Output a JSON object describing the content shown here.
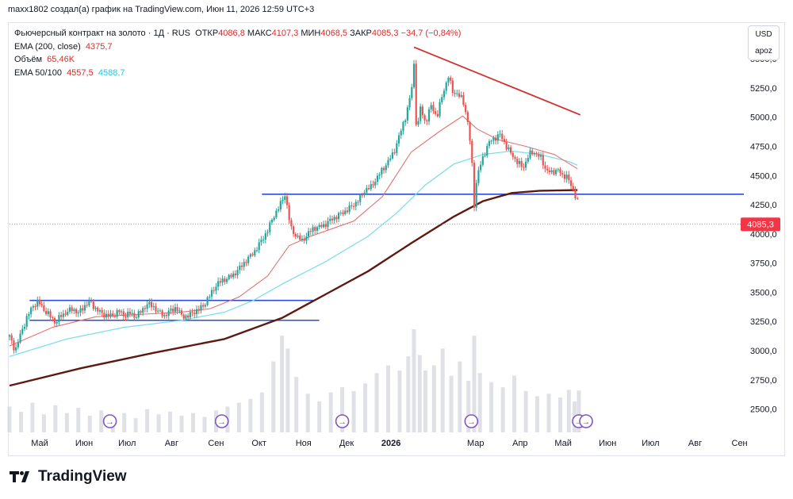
{
  "credit": "maxx1802 создал(а) график на TradingView.com, Июн 11, 2026 12:59 UTC+3",
  "legend": {
    "symbol": "Фьючерсный контракт на золото · 1Д · RUS",
    "open_label": "ОТКР",
    "open": "4086,8",
    "high_label": "МАКС",
    "high": "4107,3",
    "low_label": "МИН",
    "low": "4068,5",
    "close_label": "ЗАКР",
    "close": "4085,3",
    "change": "−34,7 (−0,84%)",
    "ema200_label": "EMA (200, close)",
    "ema200_value": "4375,7",
    "volume_label": "Объём",
    "volume_value": "65,46K",
    "ema50_100_label": "EMA 50/100",
    "ema50_value": "4557,5",
    "ema100_value": "4588,7"
  },
  "currency_button": "USD",
  "scale_button": "apoz",
  "brand": "TradingView",
  "colors": {
    "up": "#26a69a",
    "down": "#ef5350",
    "ema50": "#e57373",
    "ema100": "#80deea",
    "ema200": "#5d1a12",
    "hline": "#2e4bd8",
    "trendline": "#d32f2f",
    "price_label": "#f23645"
  },
  "chart_data": {
    "type": "candlestick",
    "title": "Фьючерсный контракт на золото",
    "timeframe": "1Д",
    "ylim": [
      2300,
      5800
    ],
    "y_ticks": [
      2500,
      2750,
      3000,
      3250,
      3500,
      3750,
      4000,
      4250,
      4500,
      4750,
      5000,
      5250,
      5500
    ],
    "y_tick_labels": [
      "2500,0",
      "2750,0",
      "3000,0",
      "3250,0",
      "3500,0",
      "3750,0",
      "4000,0",
      "4250,0",
      "4500,0",
      "4750,0",
      "5000,0",
      "5250,0",
      "5500,0"
    ],
    "x_tick_labels": [
      "Май",
      "Июн",
      "Июл",
      "Авг",
      "Сен",
      "Окт",
      "Ноя",
      "Дек",
      "2026",
      "Мар",
      "Апр",
      "Май",
      "Июн",
      "Июл",
      "Авг",
      "Сен"
    ],
    "x_ticks_day": [
      21,
      52,
      82,
      113,
      144,
      174,
      205,
      235,
      266,
      325,
      356,
      386,
      417,
      447,
      478,
      509
    ],
    "x_range_days": [
      0,
      512
    ],
    "last_price": 4085.3,
    "last_price_label": "4085,3",
    "price_path": [
      [
        0,
        3120
      ],
      [
        4,
        3000
      ],
      [
        8,
        3150
      ],
      [
        12,
        3280
      ],
      [
        16,
        3380
      ],
      [
        20,
        3420
      ],
      [
        24,
        3350
      ],
      [
        28,
        3300
      ],
      [
        32,
        3240
      ],
      [
        36,
        3300
      ],
      [
        40,
        3330
      ],
      [
        44,
        3360
      ],
      [
        48,
        3320
      ],
      [
        52,
        3380
      ],
      [
        56,
        3420
      ],
      [
        60,
        3360
      ],
      [
        64,
        3320
      ],
      [
        68,
        3300
      ],
      [
        72,
        3300
      ],
      [
        76,
        3340
      ],
      [
        80,
        3300
      ],
      [
        84,
        3320
      ],
      [
        88,
        3290
      ],
      [
        92,
        3340
      ],
      [
        96,
        3400
      ],
      [
        100,
        3380
      ],
      [
        104,
        3330
      ],
      [
        108,
        3300
      ],
      [
        112,
        3340
      ],
      [
        116,
        3370
      ],
      [
        120,
        3300
      ],
      [
        124,
        3290
      ],
      [
        128,
        3330
      ],
      [
        132,
        3350
      ],
      [
        136,
        3400
      ],
      [
        140,
        3480
      ],
      [
        144,
        3560
      ],
      [
        148,
        3600
      ],
      [
        152,
        3620
      ],
      [
        156,
        3650
      ],
      [
        160,
        3700
      ],
      [
        164,
        3760
      ],
      [
        168,
        3810
      ],
      [
        172,
        3870
      ],
      [
        176,
        3950
      ],
      [
        180,
        4030
      ],
      [
        184,
        4150
      ],
      [
        188,
        4230
      ],
      [
        192,
        4340
      ],
      [
        194,
        4200
      ],
      [
        196,
        4050
      ],
      [
        200,
        3980
      ],
      [
        204,
        3940
      ],
      [
        208,
        4000
      ],
      [
        212,
        4050
      ],
      [
        216,
        4060
      ],
      [
        220,
        4080
      ],
      [
        224,
        4120
      ],
      [
        228,
        4150
      ],
      [
        232,
        4180
      ],
      [
        236,
        4210
      ],
      [
        240,
        4250
      ],
      [
        244,
        4300
      ],
      [
        248,
        4380
      ],
      [
        252,
        4400
      ],
      [
        256,
        4480
      ],
      [
        260,
        4550
      ],
      [
        264,
        4620
      ],
      [
        268,
        4700
      ],
      [
        272,
        4850
      ],
      [
        276,
        5000
      ],
      [
        280,
        5200
      ],
      [
        282,
        5450
      ],
      [
        284,
        4800
      ],
      [
        286,
        5100
      ],
      [
        290,
        4950
      ],
      [
        294,
        5100
      ],
      [
        298,
        5000
      ],
      [
        302,
        5200
      ],
      [
        306,
        5350
      ],
      [
        309,
        5220
      ],
      [
        312,
        5200
      ],
      [
        316,
        5150
      ],
      [
        319,
        5000
      ],
      [
        322,
        4700
      ],
      [
        324,
        4250
      ],
      [
        326,
        4500
      ],
      [
        330,
        4650
      ],
      [
        334,
        4780
      ],
      [
        338,
        4820
      ],
      [
        342,
        4850
      ],
      [
        346,
        4760
      ],
      [
        350,
        4680
      ],
      [
        354,
        4620
      ],
      [
        358,
        4560
      ],
      [
        362,
        4680
      ],
      [
        366,
        4700
      ],
      [
        370,
        4660
      ],
      [
        374,
        4550
      ],
      [
        378,
        4520
      ],
      [
        382,
        4560
      ],
      [
        386,
        4480
      ],
      [
        388,
        4520
      ],
      [
        391,
        4420
      ],
      [
        394,
        4350
      ],
      [
        396,
        4290
      ],
      [
        397,
        4085
      ]
    ],
    "ema50": [
      [
        0,
        3040
      ],
      [
        30,
        3200
      ],
      [
        60,
        3290
      ],
      [
        90,
        3310
      ],
      [
        120,
        3330
      ],
      [
        140,
        3360
      ],
      [
        160,
        3460
      ],
      [
        180,
        3640
      ],
      [
        195,
        3900
      ],
      [
        210,
        3980
      ],
      [
        240,
        4110
      ],
      [
        260,
        4320
      ],
      [
        280,
        4700
      ],
      [
        300,
        4880
      ],
      [
        316,
        5010
      ],
      [
        326,
        4900
      ],
      [
        340,
        4810
      ],
      [
        360,
        4750
      ],
      [
        380,
        4680
      ],
      [
        396,
        4557.5
      ]
    ],
    "ema100": [
      [
        0,
        2950
      ],
      [
        40,
        3100
      ],
      [
        80,
        3200
      ],
      [
        120,
        3260
      ],
      [
        150,
        3330
      ],
      [
        170,
        3430
      ],
      [
        190,
        3570
      ],
      [
        220,
        3760
      ],
      [
        250,
        3980
      ],
      [
        270,
        4180
      ],
      [
        290,
        4420
      ],
      [
        310,
        4600
      ],
      [
        330,
        4680
      ],
      [
        350,
        4710
      ],
      [
        370,
        4680
      ],
      [
        390,
        4620
      ],
      [
        396,
        4588.7
      ]
    ],
    "ema200": [
      [
        0,
        2700
      ],
      [
        50,
        2850
      ],
      [
        100,
        2980
      ],
      [
        150,
        3100
      ],
      [
        190,
        3280
      ],
      [
        220,
        3480
      ],
      [
        250,
        3680
      ],
      [
        280,
        3920
      ],
      [
        310,
        4150
      ],
      [
        330,
        4280
      ],
      [
        350,
        4350
      ],
      [
        370,
        4370
      ],
      [
        396,
        4375.7
      ]
    ],
    "horizontal_lines": [
      {
        "x_start": 14,
        "x_end": 212,
        "y": 3430
      },
      {
        "x_start": 14,
        "x_end": 216,
        "y": 3260
      },
      {
        "x_start": 176,
        "x_end": 512,
        "y": 4340
      }
    ],
    "trendline": {
      "x1": 282,
      "y1": 5600,
      "x2": 398,
      "y2": 5020
    },
    "volume": {
      "label": "Объём",
      "last": "65,46K",
      "days": [
        0,
        8,
        16,
        24,
        32,
        40,
        48,
        56,
        64,
        72,
        80,
        88,
        96,
        104,
        112,
        120,
        128,
        136,
        144,
        152,
        160,
        168,
        176,
        184,
        190,
        194,
        200,
        208,
        216,
        224,
        232,
        240,
        248,
        256,
        264,
        272,
        278,
        282,
        286,
        290,
        296,
        302,
        308,
        314,
        320,
        324,
        328,
        336,
        344,
        352,
        360,
        368,
        376,
        384,
        390,
        394,
        397
      ],
      "values": [
        40,
        32,
        46,
        28,
        42,
        30,
        38,
        26,
        34,
        24,
        30,
        22,
        36,
        28,
        32,
        26,
        30,
        24,
        34,
        40,
        46,
        52,
        62,
        110,
        150,
        130,
        86,
        60,
        48,
        62,
        70,
        64,
        76,
        92,
        104,
        96,
        118,
        160,
        120,
        96,
        104,
        130,
        88,
        110,
        80,
        150,
        92,
        78,
        70,
        88,
        64,
        56,
        60,
        54,
        66,
        48,
        65
      ]
    },
    "events": [
      {
        "x": 70,
        "label": "→"
      },
      {
        "x": 148,
        "label": "→"
      },
      {
        "x": 232,
        "label": "→"
      },
      {
        "x": 322,
        "label": "→"
      },
      {
        "x": 397,
        "label": "→"
      },
      {
        "x": 402,
        "label": "→"
      }
    ]
  }
}
